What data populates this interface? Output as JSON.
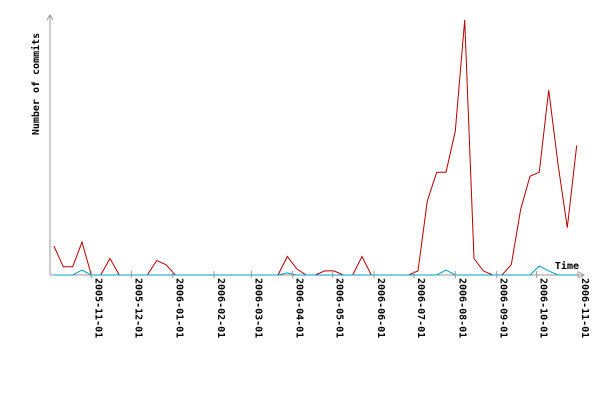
{
  "chart_data": {
    "type": "line",
    "title": "",
    "xlabel": "Time",
    "ylabel": "Number of commits",
    "xlim": [
      "2005-10-01",
      "2006-11-01"
    ],
    "ylim": [
      0,
      62
    ],
    "grid": false,
    "tick_labels": [
      "2005-11-01",
      "2005-12-01",
      "2006-01-01",
      "2006-02-01",
      "2006-03-01",
      "2006-04-01",
      "2006-05-01",
      "2006-06-01",
      "2006-07-01",
      "2006-08-01",
      "2006-09-01",
      "2006-10-01",
      "2006-11-01"
    ],
    "series": [
      {
        "color": "#b30000",
        "points": [
          [
            "2005-10-04",
            7
          ],
          [
            "2005-10-11",
            2
          ],
          [
            "2005-10-18",
            2
          ],
          [
            "2005-10-25",
            8
          ],
          [
            "2005-11-01",
            0
          ],
          [
            "2005-11-08",
            0
          ],
          [
            "2005-11-15",
            4
          ],
          [
            "2005-11-22",
            0
          ],
          [
            "2005-11-29",
            0
          ],
          [
            "2005-12-06",
            0
          ],
          [
            "2005-12-13",
            0
          ],
          [
            "2005-12-20",
            3.5
          ],
          [
            "2005-12-27",
            2.5
          ],
          [
            "2006-01-03",
            0
          ],
          [
            "2006-01-10",
            0
          ],
          [
            "2006-01-17",
            0
          ],
          [
            "2006-01-24",
            0
          ],
          [
            "2006-01-31",
            0
          ],
          [
            "2006-02-07",
            0
          ],
          [
            "2006-02-14",
            0
          ],
          [
            "2006-02-21",
            0
          ],
          [
            "2006-02-28",
            0
          ],
          [
            "2006-03-07",
            0
          ],
          [
            "2006-03-14",
            0
          ],
          [
            "2006-03-21",
            0
          ],
          [
            "2006-03-28",
            4.5
          ],
          [
            "2006-04-04",
            1.5
          ],
          [
            "2006-04-11",
            0
          ],
          [
            "2006-04-18",
            0
          ],
          [
            "2006-04-25",
            1
          ],
          [
            "2006-05-02",
            1
          ],
          [
            "2006-05-09",
            0
          ],
          [
            "2006-05-16",
            0
          ],
          [
            "2006-05-23",
            4.5
          ],
          [
            "2006-05-30",
            0
          ],
          [
            "2006-06-06",
            0
          ],
          [
            "2006-06-13",
            0
          ],
          [
            "2006-06-20",
            0
          ],
          [
            "2006-06-27",
            0
          ],
          [
            "2006-07-04",
            1
          ],
          [
            "2006-07-11",
            18
          ],
          [
            "2006-07-18",
            25
          ],
          [
            "2006-07-25",
            25
          ],
          [
            "2006-08-01",
            35
          ],
          [
            "2006-08-08",
            62
          ],
          [
            "2006-08-15",
            4
          ],
          [
            "2006-08-22",
            1
          ],
          [
            "2006-08-29",
            0
          ],
          [
            "2006-09-05",
            0
          ],
          [
            "2006-09-12",
            2.5
          ],
          [
            "2006-09-19",
            16
          ],
          [
            "2006-09-26",
            24
          ],
          [
            "2006-10-03",
            25
          ],
          [
            "2006-10-10",
            45
          ],
          [
            "2006-10-17",
            27
          ],
          [
            "2006-10-24",
            11.5
          ],
          [
            "2006-10-31",
            31.5
          ]
        ]
      },
      {
        "color": "#00a0c0",
        "points": [
          [
            "2005-10-04",
            0
          ],
          [
            "2005-10-18",
            0
          ],
          [
            "2005-10-25",
            1.2
          ],
          [
            "2005-11-01",
            0
          ],
          [
            "2006-03-21",
            0
          ],
          [
            "2006-03-28",
            0.5
          ],
          [
            "2006-04-04",
            0
          ],
          [
            "2006-07-18",
            0
          ],
          [
            "2006-07-25",
            1.2
          ],
          [
            "2006-08-01",
            0
          ],
          [
            "2006-09-26",
            0
          ],
          [
            "2006-10-03",
            2.2
          ],
          [
            "2006-10-10",
            1
          ],
          [
            "2006-10-17",
            0
          ],
          [
            "2006-10-31",
            0
          ]
        ]
      }
    ]
  }
}
